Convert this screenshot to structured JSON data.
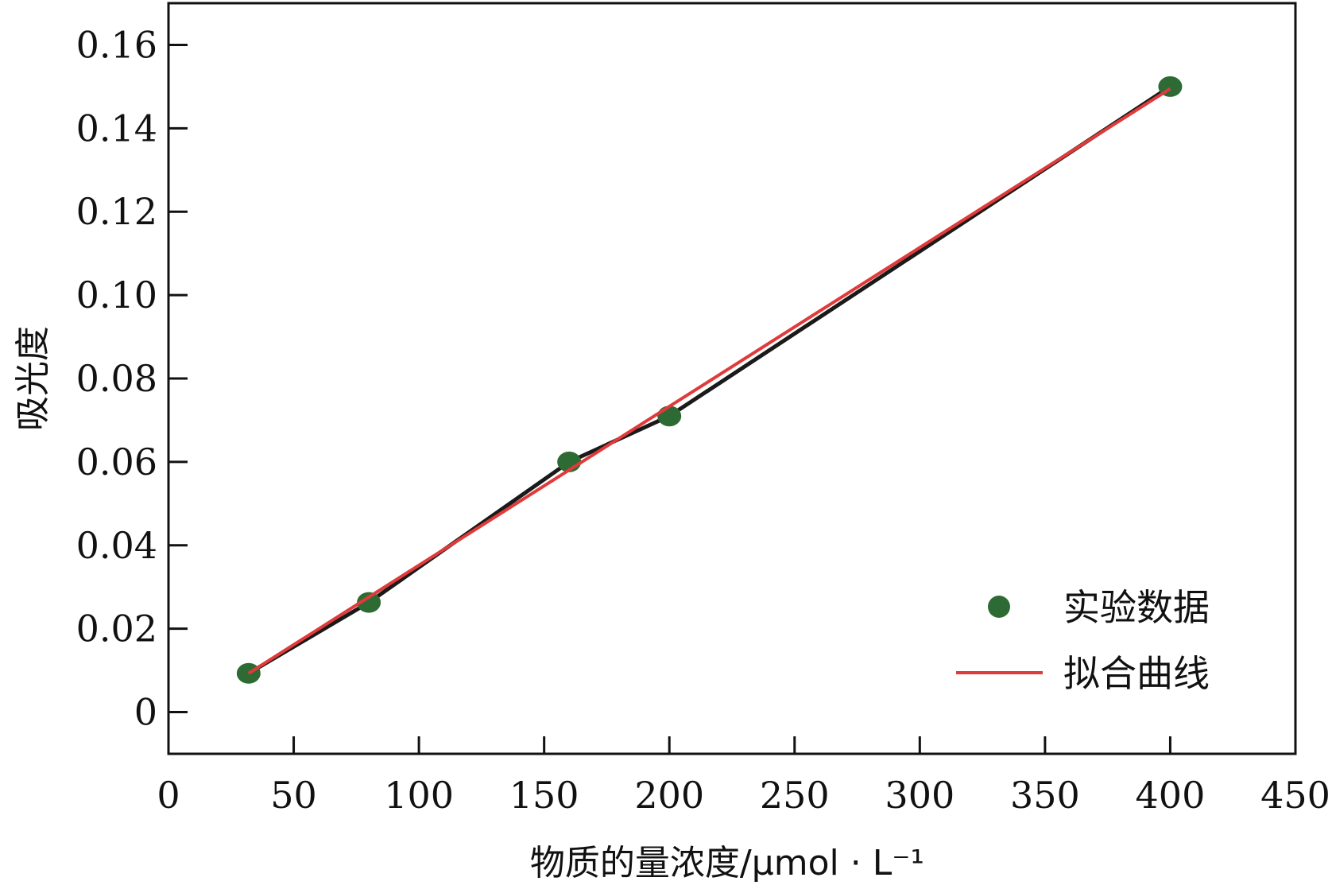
{
  "chart_data": {
    "type": "scatter",
    "xlabel": "物质的量浓度/μmol · L⁻¹",
    "ylabel": "吸光度",
    "xlim": [
      0,
      450
    ],
    "ylim": [
      -0.01,
      0.17
    ],
    "x_ticks": [
      0,
      50,
      100,
      150,
      200,
      250,
      300,
      350,
      400,
      450
    ],
    "x_tick_labels": [
      "0",
      "50",
      "100",
      "150",
      "200",
      "250",
      "300",
      "350",
      "400",
      "450"
    ],
    "y_ticks": [
      0,
      0.02,
      0.04,
      0.06,
      0.08,
      0.1,
      0.12,
      0.14,
      0.16
    ],
    "y_tick_labels": [
      "0",
      "0.02",
      "0.04",
      "0.06",
      "0.08",
      "0.10",
      "0.12",
      "0.14",
      "0.16"
    ],
    "grid": false,
    "legend_position": "bottom-right",
    "series": [
      {
        "name": "实验数据",
        "kind": "scatter-connected",
        "color": "#2e6b34",
        "line_color": "#1a1a1a",
        "x": [
          32,
          80,
          160,
          200,
          400
        ],
        "y": [
          0.0093,
          0.0263,
          0.06,
          0.071,
          0.15
        ]
      },
      {
        "name": "拟合曲线",
        "kind": "line",
        "color": "#e03a3a",
        "x": [
          32,
          400
        ],
        "y": [
          0.0093,
          0.1495
        ]
      }
    ]
  }
}
